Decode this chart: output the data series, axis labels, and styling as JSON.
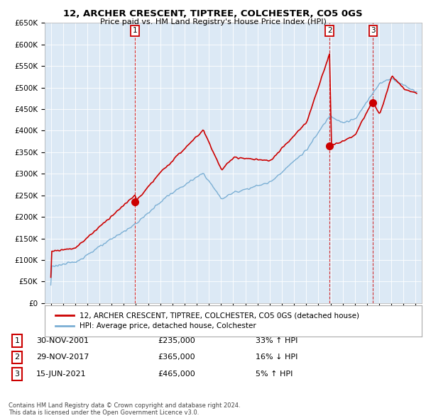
{
  "title": "12, ARCHER CRESCENT, TIPTREE, COLCHESTER, CO5 0GS",
  "subtitle": "Price paid vs. HM Land Registry's House Price Index (HPI)",
  "ylim": [
    0,
    650000
  ],
  "yticks": [
    0,
    50000,
    100000,
    150000,
    200000,
    250000,
    300000,
    350000,
    400000,
    450000,
    500000,
    550000,
    600000,
    650000
  ],
  "ytick_labels": [
    "£0",
    "£50K",
    "£100K",
    "£150K",
    "£200K",
    "£250K",
    "£300K",
    "£350K",
    "£400K",
    "£450K",
    "£500K",
    "£550K",
    "£600K",
    "£650K"
  ],
  "sale_annotations": [
    {
      "label": "1",
      "date": "30-NOV-2001",
      "price": "£235,000",
      "pct": "33%",
      "direction": "↑",
      "vs": "HPI"
    },
    {
      "label": "2",
      "date": "29-NOV-2017",
      "price": "£365,000",
      "pct": "16%",
      "direction": "↓",
      "vs": "HPI"
    },
    {
      "label": "3",
      "date": "15-JUN-2021",
      "price": "£465,000",
      "pct": "5%",
      "direction": "↑",
      "vs": "HPI"
    }
  ],
  "property_line_color": "#cc0000",
  "hpi_line_color": "#7bafd4",
  "grid_color": "#cccccc",
  "plot_bg_color": "#dce9f5",
  "background_color": "#ffffff",
  "legend_property_label": "12, ARCHER CRESCENT, TIPTREE, COLCHESTER, CO5 0GS (detached house)",
  "legend_hpi_label": "HPI: Average price, detached house, Colchester",
  "footer_text": "Contains HM Land Registry data © Crown copyright and database right 2024.\nThis data is licensed under the Open Government Licence v3.0.",
  "xlim_start": 1994.5,
  "xlim_end": 2025.5
}
